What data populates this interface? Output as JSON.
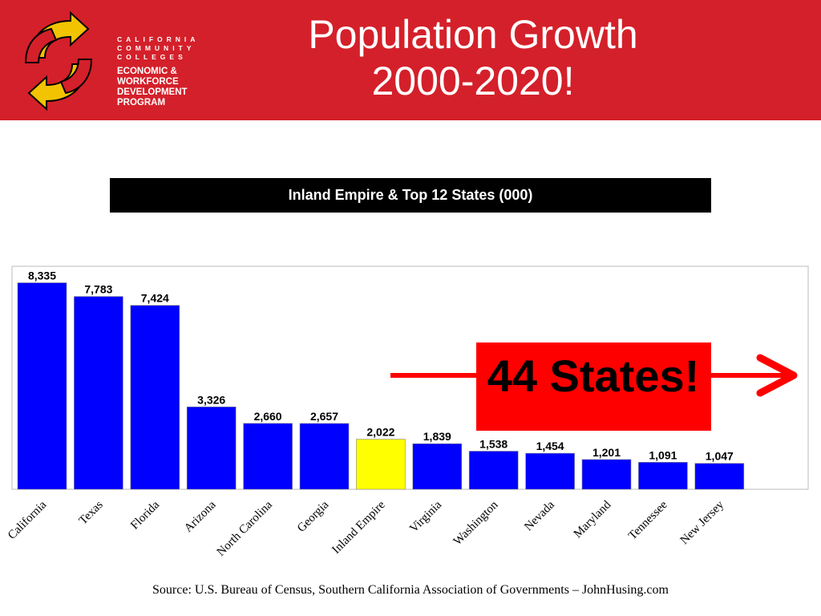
{
  "header": {
    "logo": {
      "org_lines": [
        "CALIFORNIA",
        "COMMUNITY",
        "COLLEGES"
      ],
      "program_lines": [
        "ECONOMIC &",
        "WORKFORCE",
        "DEVELOPMENT",
        "PROGRAM"
      ]
    },
    "title_line1": "Population Growth",
    "title_line2": "2000-2020!",
    "colors": {
      "banner": "#d4202a",
      "logo_red": "#d4202a",
      "logo_yellow": "#f2c300"
    }
  },
  "chart_data": {
    "type": "bar",
    "title": "Inland Empire & Top 12 States (000)",
    "categories": [
      "California",
      "Texas",
      "Florida",
      "Arizona",
      "North Carolina",
      "Georgia",
      "Inland Empire",
      "Virginia",
      "Washington",
      "Nevada",
      "Maryland",
      "Tennessee",
      "New Jersey"
    ],
    "values": [
      8335,
      7783,
      7424,
      3326,
      2660,
      2657,
      2022,
      1839,
      1538,
      1454,
      1201,
      1091,
      1047
    ],
    "value_labels": [
      "8,335",
      "7,783",
      "7,424",
      "3,326",
      "2,660",
      "2,657",
      "2,022",
      "1,839",
      "1,538",
      "1,454",
      "1,201",
      "1,091",
      "1,047"
    ],
    "ylim": [
      0,
      9000
    ],
    "grid": false,
    "bar_color": "#0000ff",
    "highlight_category": "Inland Empire",
    "highlight_color": "#ffff00",
    "annotation": {
      "text": "44 States!",
      "box_color": "#ff0000",
      "arrow_color": "#ff0000"
    }
  },
  "source": "Source:  U.S. Bureau of Census, Southern California Association of Governments – JohnHusing.com"
}
